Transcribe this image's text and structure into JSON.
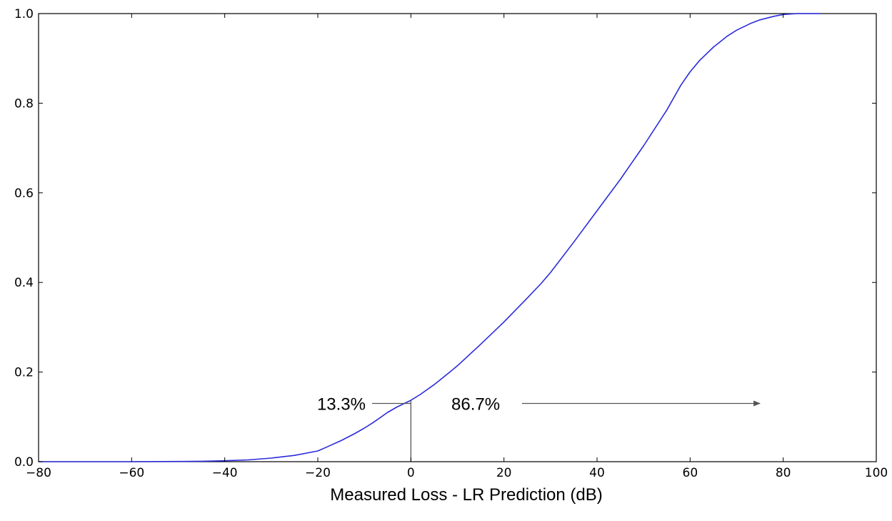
{
  "chart_data": {
    "type": "line",
    "title": "",
    "xlabel": "Measured Loss - LR Prediction (dB)",
    "ylabel": "",
    "xlim": [
      -80,
      100
    ],
    "ylim": [
      0.0,
      1.0
    ],
    "xticks": [
      -80,
      -60,
      -40,
      -20,
      0,
      20,
      40,
      60,
      80,
      100
    ],
    "xtick_labels": [
      "−80",
      "−60",
      "−40",
      "−20",
      "0",
      "20",
      "40",
      "60",
      "80",
      "100"
    ],
    "yticks": [
      0.0,
      0.2,
      0.4,
      0.6,
      0.8,
      1.0
    ],
    "ytick_labels": [
      "0.0",
      "0.2",
      "0.4",
      "0.6",
      "0.8",
      "1.0"
    ],
    "grid": false,
    "line_color": "#2b2bdc",
    "series": [
      {
        "x": [
          -80,
          -70,
          -60,
          -50,
          -45,
          -40,
          -35,
          -30,
          -25,
          -20,
          -18,
          -15,
          -12,
          -10,
          -8,
          -5,
          -3,
          0,
          2,
          5,
          8,
          10,
          15,
          20,
          25,
          28,
          30,
          35,
          40,
          45,
          50,
          55,
          58,
          60,
          62,
          65,
          68,
          70,
          73,
          75,
          78,
          80,
          83,
          88
        ],
        "y": [
          0.0,
          0.0,
          0.0,
          0.0005,
          0.001,
          0.002,
          0.004,
          0.008,
          0.014,
          0.024,
          0.033,
          0.047,
          0.063,
          0.075,
          0.088,
          0.11,
          0.122,
          0.137,
          0.15,
          0.172,
          0.197,
          0.214,
          0.262,
          0.312,
          0.365,
          0.398,
          0.422,
          0.49,
          0.56,
          0.63,
          0.705,
          0.785,
          0.84,
          0.87,
          0.895,
          0.925,
          0.95,
          0.963,
          0.978,
          0.986,
          0.994,
          0.998,
          1.0,
          1.0
        ]
      }
    ],
    "annotations": [
      {
        "text": "13.3%",
        "x": -10,
        "y": 0.13,
        "arrow": "pointing left from curve at x=0"
      },
      {
        "text": "86.7%",
        "x": 15,
        "y": 0.13,
        "arrow": "pointing right to x=75"
      }
    ],
    "vline": {
      "x": 0,
      "y_from": 0.0,
      "y_to": 0.137
    }
  }
}
